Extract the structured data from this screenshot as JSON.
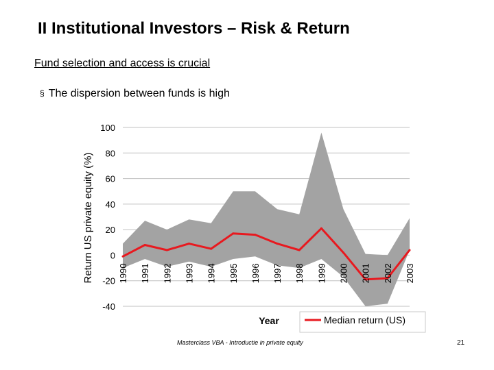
{
  "slide": {
    "title": "II  Institutional Investors – Risk & Return",
    "subtitle": "Fund selection and access is crucial",
    "bullet_marker": "§",
    "bullet_bold": "The dispersion",
    "bullet_rest": " between funds is high",
    "footer": "Masterclass VBA - Introductie in private equity",
    "page_number": "21"
  },
  "chart_data": {
    "type": "area",
    "xlabel": "Year",
    "ylabel": "Return US private equity (%)",
    "categories": [
      "1990",
      "1991",
      "1992",
      "1993",
      "1994",
      "1995",
      "1996",
      "1997",
      "1998",
      "1999",
      "2000",
      "2001",
      "2002",
      "2003"
    ],
    "ylim": [
      -40,
      100
    ],
    "yticks": [
      -40,
      -20,
      0,
      20,
      40,
      60,
      80,
      100
    ],
    "grid": true,
    "legend_position": "bottom-right",
    "colors": {
      "band": "#a3a3a3",
      "median": "#e8191f",
      "grid": "#c0c0c0"
    },
    "series": [
      {
        "name": "",
        "kind": "band-upper",
        "values": [
          9,
          27,
          20,
          28,
          25,
          50,
          50,
          36,
          32,
          96,
          36,
          1,
          0,
          29
        ]
      },
      {
        "name": "",
        "kind": "band-lower",
        "values": [
          -10,
          -3,
          -9,
          -5,
          -9,
          -3,
          -1,
          -8,
          -10,
          -3,
          -17,
          -40,
          -38,
          4
        ]
      },
      {
        "name": "Median return (US)",
        "kind": "line",
        "values": [
          -1,
          8,
          4,
          9,
          5,
          17,
          16,
          9,
          4,
          21,
          2,
          -19,
          -18,
          4
        ]
      }
    ]
  }
}
